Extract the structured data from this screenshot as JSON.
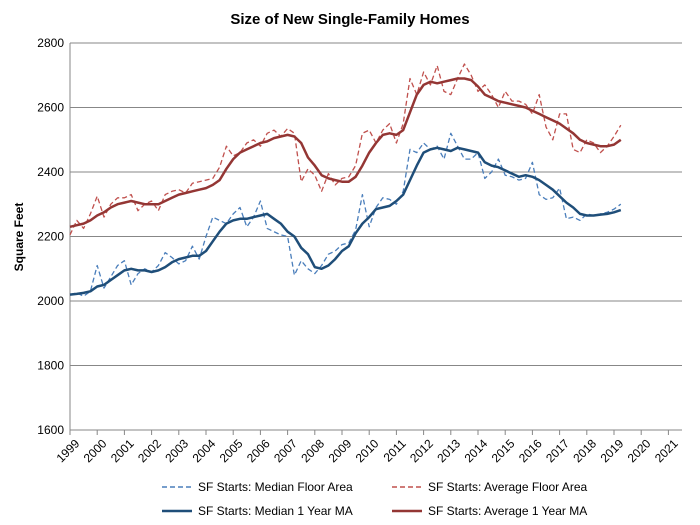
{
  "chart_data": {
    "type": "line",
    "title": "Size of New Single-Family Homes",
    "xlabel": "",
    "ylabel": "Square Feet",
    "ylim": [
      1600,
      2800
    ],
    "yticks": [
      "1600",
      "1800",
      "2000",
      "2200",
      "2400",
      "2600",
      "2800"
    ],
    "xlim": [
      1999,
      2021.5
    ],
    "xticks": [
      "1999",
      "2000",
      "2001",
      "2002",
      "2003",
      "2004",
      "2005",
      "2006",
      "2007",
      "2008",
      "2009",
      "2010",
      "2011",
      "2012",
      "2013",
      "2014",
      "2015",
      "2016",
      "2017",
      "2018",
      "2019",
      "2020",
      "2021"
    ],
    "grid": true,
    "legend_position": "bottom",
    "x_step": "quarterly",
    "x_start": "1999 Q1",
    "series": [
      {
        "name": "SF Starts: Median Floor Area",
        "color": "#4a7ebb",
        "style": "dashed",
        "values": [
          2020,
          2025,
          2015,
          2030,
          2110,
          2040,
          2075,
          2110,
          2125,
          2050,
          2085,
          2100,
          2090,
          2110,
          2150,
          2135,
          2115,
          2125,
          2170,
          2130,
          2200,
          2260,
          2250,
          2240,
          2270,
          2290,
          2230,
          2260,
          2310,
          2225,
          2215,
          2205,
          2200,
          2080,
          2125,
          2100,
          2085,
          2110,
          2145,
          2155,
          2175,
          2180,
          2220,
          2330,
          2230,
          2290,
          2320,
          2315,
          2300,
          2340,
          2470,
          2460,
          2490,
          2470,
          2480,
          2440,
          2520,
          2480,
          2440,
          2440,
          2460,
          2380,
          2400,
          2440,
          2390,
          2385,
          2375,
          2380,
          2430,
          2330,
          2315,
          2320,
          2350,
          2255,
          2260,
          2250,
          2270,
          2265,
          2270,
          2275,
          2285,
          2300
        ]
      },
      {
        "name": "SF Starts: Average Floor Area",
        "color": "#c0504d",
        "style": "dashed",
        "values": [
          2205,
          2250,
          2225,
          2270,
          2325,
          2260,
          2300,
          2320,
          2320,
          2330,
          2280,
          2300,
          2310,
          2280,
          2330,
          2340,
          2345,
          2335,
          2365,
          2370,
          2375,
          2380,
          2415,
          2480,
          2450,
          2460,
          2490,
          2500,
          2480,
          2520,
          2530,
          2510,
          2535,
          2520,
          2370,
          2410,
          2390,
          2340,
          2395,
          2360,
          2380,
          2385,
          2420,
          2520,
          2530,
          2490,
          2530,
          2550,
          2490,
          2550,
          2690,
          2640,
          2710,
          2670,
          2730,
          2650,
          2640,
          2690,
          2735,
          2700,
          2650,
          2670,
          2640,
          2600,
          2650,
          2620,
          2620,
          2610,
          2580,
          2640,
          2540,
          2500,
          2580,
          2580,
          2470,
          2460,
          2500,
          2490,
          2460,
          2480,
          2510,
          2545
        ]
      },
      {
        "name": "SF Starts: Median 1 Year MA",
        "color": "#1f4e79",
        "style": "solid",
        "values": [
          2020,
          2022,
          2025,
          2030,
          2045,
          2050,
          2065,
          2080,
          2095,
          2100,
          2095,
          2095,
          2090,
          2095,
          2105,
          2120,
          2130,
          2135,
          2140,
          2140,
          2155,
          2185,
          2215,
          2240,
          2250,
          2255,
          2255,
          2260,
          2265,
          2270,
          2255,
          2240,
          2215,
          2200,
          2165,
          2145,
          2105,
          2100,
          2110,
          2130,
          2155,
          2170,
          2210,
          2240,
          2260,
          2285,
          2290,
          2295,
          2310,
          2330,
          2375,
          2420,
          2460,
          2470,
          2475,
          2470,
          2465,
          2475,
          2470,
          2465,
          2460,
          2430,
          2420,
          2415,
          2405,
          2395,
          2385,
          2390,
          2385,
          2375,
          2360,
          2345,
          2325,
          2305,
          2290,
          2270,
          2265,
          2265,
          2268,
          2270,
          2275,
          2282
        ]
      },
      {
        "name": "SF Starts: Average 1 Year MA",
        "color": "#943634",
        "style": "solid",
        "values": [
          2230,
          2235,
          2240,
          2250,
          2265,
          2275,
          2290,
          2300,
          2305,
          2310,
          2305,
          2300,
          2300,
          2300,
          2310,
          2320,
          2330,
          2335,
          2340,
          2345,
          2350,
          2360,
          2375,
          2410,
          2440,
          2460,
          2470,
          2480,
          2490,
          2495,
          2505,
          2510,
          2515,
          2510,
          2490,
          2445,
          2420,
          2390,
          2380,
          2375,
          2370,
          2370,
          2385,
          2420,
          2460,
          2490,
          2515,
          2520,
          2515,
          2530,
          2585,
          2640,
          2670,
          2680,
          2675,
          2680,
          2685,
          2690,
          2690,
          2685,
          2665,
          2640,
          2630,
          2620,
          2615,
          2610,
          2605,
          2600,
          2590,
          2580,
          2570,
          2560,
          2550,
          2535,
          2520,
          2500,
          2490,
          2485,
          2480,
          2480,
          2485,
          2500
        ]
      }
    ]
  }
}
